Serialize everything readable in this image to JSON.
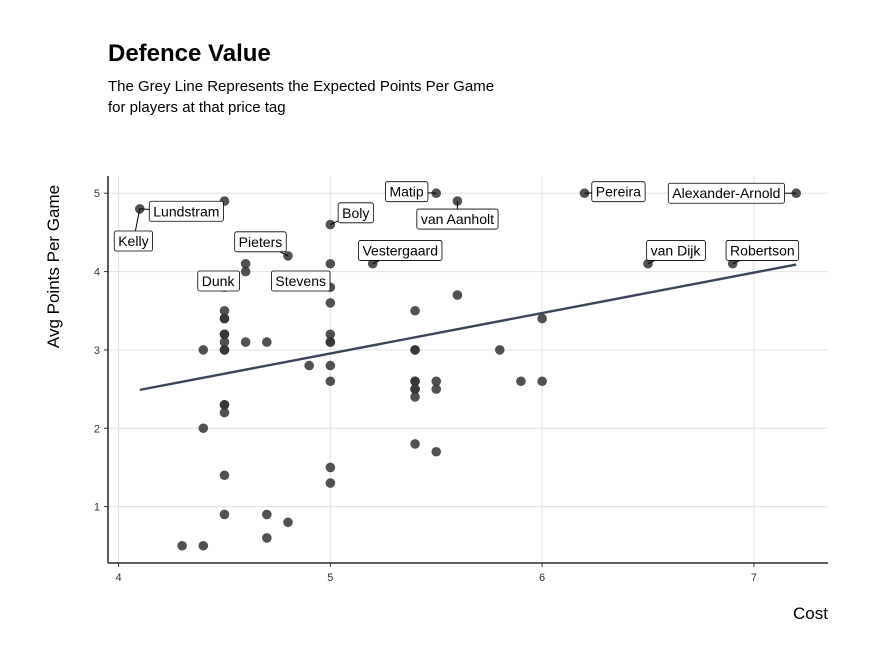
{
  "chart_data": {
    "type": "scatter",
    "title": "Defence Value",
    "subtitle_lines": [
      "The Grey Line Represents the Expected Points Per Game",
      "for players at that price tag"
    ],
    "xlabel": "Cost",
    "ylabel": "Avg Points Per Game",
    "xlim": [
      3.95,
      7.35
    ],
    "ylim": [
      0.28,
      5.22
    ],
    "xticks": [
      4,
      5,
      6,
      7
    ],
    "yticks": [
      1,
      2,
      3,
      4,
      5
    ],
    "grid": true,
    "colors": {
      "point": "#333333",
      "trend": "#3b4459",
      "grid": "#e6e6e6",
      "axis": "#000000"
    },
    "trend_line": {
      "x": [
        4.1,
        7.2
      ],
      "y": [
        2.49,
        4.09
      ]
    },
    "points": [
      {
        "x": 4.1,
        "y": 4.8
      },
      {
        "x": 4.3,
        "y": 0.5
      },
      {
        "x": 4.4,
        "y": 0.5
      },
      {
        "x": 4.4,
        "y": 2.0
      },
      {
        "x": 4.4,
        "y": 3.0
      },
      {
        "x": 4.5,
        "y": 4.9
      },
      {
        "x": 4.5,
        "y": 3.8
      },
      {
        "x": 4.5,
        "y": 3.5
      },
      {
        "x": 4.5,
        "y": 3.4
      },
      {
        "x": 4.5,
        "y": 3.4
      },
      {
        "x": 4.5,
        "y": 3.2
      },
      {
        "x": 4.5,
        "y": 3.2
      },
      {
        "x": 4.5,
        "y": 3.1
      },
      {
        "x": 4.5,
        "y": 3.0
      },
      {
        "x": 4.5,
        "y": 3.0
      },
      {
        "x": 4.5,
        "y": 2.3
      },
      {
        "x": 4.5,
        "y": 2.3
      },
      {
        "x": 4.5,
        "y": 2.2
      },
      {
        "x": 4.5,
        "y": 1.4
      },
      {
        "x": 4.5,
        "y": 0.9
      },
      {
        "x": 4.6,
        "y": 4.1
      },
      {
        "x": 4.6,
        "y": 4.0
      },
      {
        "x": 4.6,
        "y": 3.1
      },
      {
        "x": 4.7,
        "y": 3.1
      },
      {
        "x": 4.7,
        "y": 0.9
      },
      {
        "x": 4.7,
        "y": 0.6
      },
      {
        "x": 4.8,
        "y": 4.2
      },
      {
        "x": 4.8,
        "y": 0.8
      },
      {
        "x": 4.9,
        "y": 2.8
      },
      {
        "x": 5.0,
        "y": 4.6
      },
      {
        "x": 5.0,
        "y": 4.1
      },
      {
        "x": 5.0,
        "y": 3.8
      },
      {
        "x": 5.0,
        "y": 3.6
      },
      {
        "x": 5.0,
        "y": 3.2
      },
      {
        "x": 5.0,
        "y": 3.1
      },
      {
        "x": 5.0,
        "y": 3.1
      },
      {
        "x": 5.0,
        "y": 2.8
      },
      {
        "x": 5.0,
        "y": 2.6
      },
      {
        "x": 5.0,
        "y": 1.5
      },
      {
        "x": 5.0,
        "y": 1.3
      },
      {
        "x": 5.2,
        "y": 4.1
      },
      {
        "x": 5.4,
        "y": 3.5
      },
      {
        "x": 5.4,
        "y": 3.0
      },
      {
        "x": 5.4,
        "y": 3.0
      },
      {
        "x": 5.4,
        "y": 2.6
      },
      {
        "x": 5.4,
        "y": 2.6
      },
      {
        "x": 5.4,
        "y": 2.5
      },
      {
        "x": 5.4,
        "y": 2.5
      },
      {
        "x": 5.4,
        "y": 2.4
      },
      {
        "x": 5.4,
        "y": 1.8
      },
      {
        "x": 5.5,
        "y": 5.0
      },
      {
        "x": 5.5,
        "y": 2.6
      },
      {
        "x": 5.5,
        "y": 2.5
      },
      {
        "x": 5.5,
        "y": 1.7
      },
      {
        "x": 5.6,
        "y": 4.9
      },
      {
        "x": 5.6,
        "y": 3.7
      },
      {
        "x": 5.8,
        "y": 3.0
      },
      {
        "x": 5.9,
        "y": 2.6
      },
      {
        "x": 6.0,
        "y": 3.4
      },
      {
        "x": 6.0,
        "y": 2.6
      },
      {
        "x": 6.2,
        "y": 5.0
      },
      {
        "x": 6.5,
        "y": 4.1
      },
      {
        "x": 6.9,
        "y": 4.1
      },
      {
        "x": 7.2,
        "y": 5.0
      }
    ],
    "labels": [
      {
        "text": "Kelly",
        "x": 4.1,
        "y": 4.8,
        "lx": 4.07,
        "ly": 4.39,
        "anchor": "middle"
      },
      {
        "text": "Lundstram",
        "x": 4.1,
        "y": 4.8,
        "lx": 4.32,
        "ly": 4.77,
        "anchor": "middle"
      },
      {
        "text": "Pieters",
        "x": 4.8,
        "y": 4.2,
        "lx": 4.67,
        "ly": 4.38,
        "anchor": "middle"
      },
      {
        "text": "Dunk",
        "x": 4.5,
        "y": 3.8,
        "lx": 4.47,
        "ly": 3.88,
        "anchor": "middle"
      },
      {
        "text": "Stevens",
        "x": 5.0,
        "y": 3.8,
        "lx": 4.86,
        "ly": 3.88,
        "anchor": "middle"
      },
      {
        "text": "Boly",
        "x": 5.0,
        "y": 4.6,
        "lx": 5.12,
        "ly": 4.75,
        "anchor": "middle"
      },
      {
        "text": "Vestergaard",
        "x": 5.2,
        "y": 4.1,
        "lx": 5.33,
        "ly": 4.27,
        "anchor": "middle"
      },
      {
        "text": "Matip",
        "x": 5.5,
        "y": 5.0,
        "lx": 5.36,
        "ly": 5.02,
        "anchor": "middle"
      },
      {
        "text": "van Aanholt",
        "x": 5.6,
        "y": 4.9,
        "lx": 5.6,
        "ly": 4.67,
        "anchor": "middle"
      },
      {
        "text": "Pereira",
        "x": 6.2,
        "y": 5.0,
        "lx": 6.36,
        "ly": 5.02,
        "anchor": "middle"
      },
      {
        "text": "Alexander-Arnold",
        "x": 7.2,
        "y": 5.0,
        "lx": 6.87,
        "ly": 5.0,
        "anchor": "middle"
      },
      {
        "text": "van Dijk",
        "x": 6.5,
        "y": 4.1,
        "lx": 6.63,
        "ly": 4.27,
        "anchor": "middle"
      },
      {
        "text": "Robertson",
        "x": 6.9,
        "y": 4.1,
        "lx": 7.04,
        "ly": 4.27,
        "anchor": "middle"
      }
    ]
  }
}
